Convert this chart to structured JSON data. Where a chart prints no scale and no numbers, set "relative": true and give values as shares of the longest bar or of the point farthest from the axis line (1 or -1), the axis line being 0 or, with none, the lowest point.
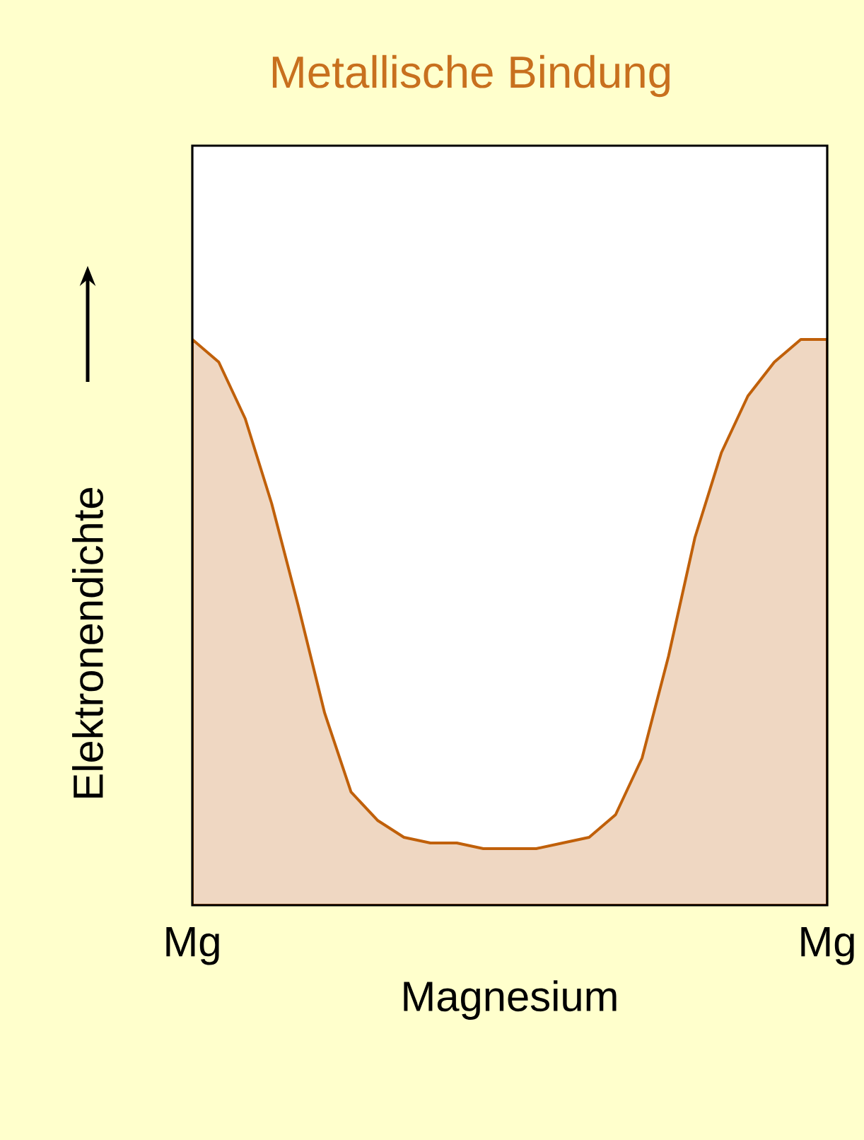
{
  "chart_data": {
    "type": "area",
    "title": "Metallische Bindung",
    "xlabel": "Magnesium",
    "ylabel": "Elektronendichte",
    "relative": true,
    "categories": [
      "Mg",
      null,
      null,
      null,
      null,
      null,
      null,
      null,
      null,
      null,
      null,
      null,
      null,
      null,
      null,
      null,
      null,
      null,
      null,
      null,
      null,
      null,
      null,
      null,
      "Mg"
    ],
    "series": [
      {
        "color": "#efd7c2",
        "values": [
          1,
          0.96,
          0.86,
          0.71,
          0.53,
          0.34,
          0.2,
          0.15,
          0.12,
          0.11,
          0.11,
          0.1,
          0.1,
          0.1,
          0.11,
          0.12,
          0.16,
          0.26,
          0.44,
          0.65,
          0.8,
          0.9,
          0.96,
          1,
          1
        ]
      }
    ]
  }
}
